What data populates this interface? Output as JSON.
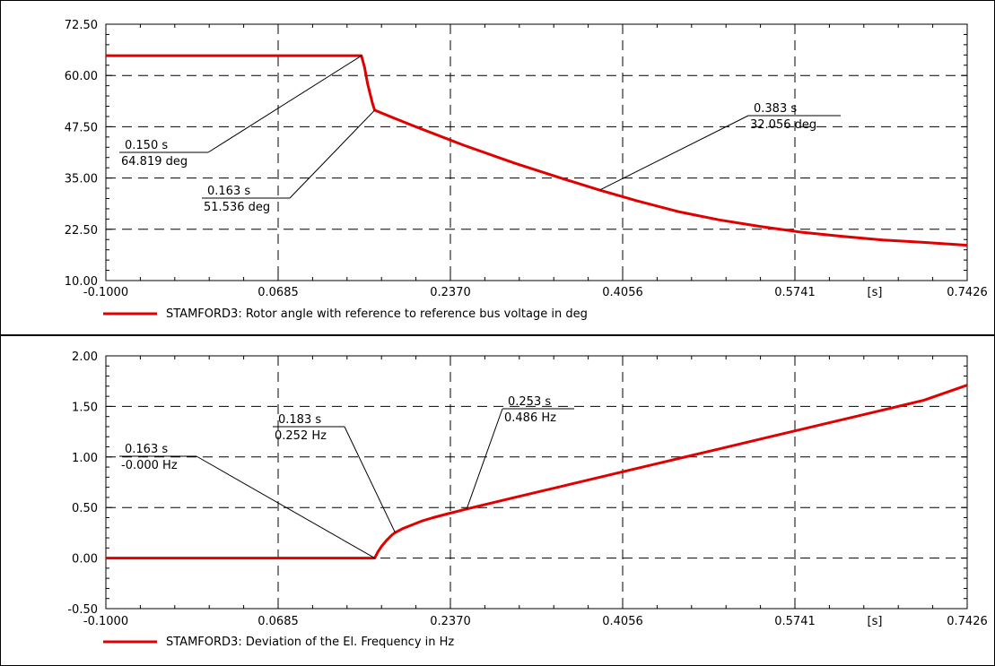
{
  "chart_data": [
    {
      "type": "line",
      "xlim": [
        -0.1,
        0.7426
      ],
      "ylim": [
        10.0,
        72.5
      ],
      "x_ticks": [
        "-0.1000",
        "0.0685",
        "0.2370",
        "0.4056",
        "0.5741",
        "0.7426"
      ],
      "y_ticks": [
        "72.50",
        "60.00",
        "47.50",
        "35.00",
        "22.50",
        "10.00"
      ],
      "x_unit_label": "[s]",
      "grid": true,
      "color": "#e00000",
      "series": [
        {
          "name": "STAMFORD3: Rotor angle with reference to reference bus voltage in deg",
          "x": [
            -0.1,
            0.0,
            0.1,
            0.15,
            0.153,
            0.156,
            0.159,
            0.161,
            0.163,
            0.18,
            0.2,
            0.25,
            0.3,
            0.35,
            0.383,
            0.42,
            0.46,
            0.5,
            0.54,
            0.58,
            0.62,
            0.66,
            0.7,
            0.7426
          ],
          "y": [
            64.819,
            64.819,
            64.819,
            64.819,
            62.0,
            58.0,
            55.0,
            53.0,
            51.536,
            49.8,
            47.8,
            43.0,
            38.6,
            34.6,
            32.056,
            29.4,
            26.8,
            24.8,
            23.2,
            21.8,
            20.8,
            19.9,
            19.3,
            18.6
          ]
        }
      ],
      "annotations": [
        {
          "time": "0.150 s",
          "value": "64.819 deg",
          "x": 0.15,
          "y": 64.819
        },
        {
          "time": "0.163 s",
          "value": "51.536 deg",
          "x": 0.163,
          "y": 51.536
        },
        {
          "time": "0.383 s",
          "value": "32.056 deg",
          "x": 0.383,
          "y": 32.056
        }
      ]
    },
    {
      "type": "line",
      "xlim": [
        -0.1,
        0.7426
      ],
      "ylim": [
        -0.5,
        2.0
      ],
      "x_ticks": [
        "-0.1000",
        "0.0685",
        "0.2370",
        "0.4056",
        "0.5741",
        "0.7426"
      ],
      "y_ticks": [
        "2.00",
        "1.50",
        "1.00",
        "0.50",
        "0.00",
        "-0.50"
      ],
      "x_unit_label": "[s]",
      "grid": true,
      "color": "#e00000",
      "series": [
        {
          "name": "STAMFORD3: Deviation of the El. Frequency in Hz",
          "x": [
            -0.1,
            0.0,
            0.1,
            0.163,
            0.166,
            0.17,
            0.175,
            0.18,
            0.183,
            0.19,
            0.2,
            0.21,
            0.22,
            0.235,
            0.253,
            0.3,
            0.35,
            0.4,
            0.45,
            0.5,
            0.55,
            0.6,
            0.65,
            0.7,
            0.7426
          ],
          "y": [
            0.0,
            0.0,
            0.0,
            0.0,
            0.06,
            0.12,
            0.18,
            0.23,
            0.252,
            0.29,
            0.33,
            0.37,
            0.4,
            0.44,
            0.486,
            0.6,
            0.72,
            0.84,
            0.96,
            1.08,
            1.2,
            1.32,
            1.44,
            1.56,
            1.71
          ]
        }
      ],
      "annotations": [
        {
          "time": "0.163 s",
          "value": "-0.000 Hz",
          "x": 0.163,
          "y": 0.0
        },
        {
          "time": "0.183 s",
          "value": "0.252 Hz",
          "x": 0.183,
          "y": 0.252
        },
        {
          "time": "0.253 s",
          "value": "0.486 Hz",
          "x": 0.253,
          "y": 0.486
        }
      ]
    }
  ]
}
